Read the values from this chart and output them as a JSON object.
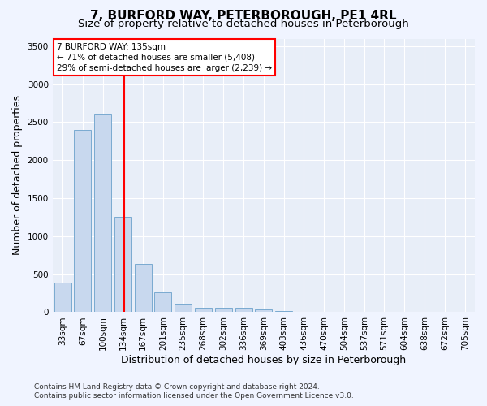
{
  "title": "7, BURFORD WAY, PETERBOROUGH, PE1 4RL",
  "subtitle": "Size of property relative to detached houses in Peterborough",
  "xlabel": "Distribution of detached houses by size in Peterborough",
  "ylabel": "Number of detached properties",
  "categories": [
    "33sqm",
    "67sqm",
    "100sqm",
    "134sqm",
    "167sqm",
    "201sqm",
    "235sqm",
    "268sqm",
    "302sqm",
    "336sqm",
    "369sqm",
    "403sqm",
    "436sqm",
    "470sqm",
    "504sqm",
    "537sqm",
    "571sqm",
    "604sqm",
    "638sqm",
    "672sqm",
    "705sqm"
  ],
  "values": [
    390,
    2400,
    2600,
    1250,
    640,
    260,
    100,
    62,
    55,
    55,
    40,
    18,
    5,
    3,
    2,
    2,
    1,
    1,
    1,
    1,
    1
  ],
  "bar_color": "#c8d8ee",
  "bar_edge_color": "#7aaad0",
  "ylim": [
    0,
    3600
  ],
  "yticks": [
    0,
    500,
    1000,
    1500,
    2000,
    2500,
    3000,
    3500
  ],
  "annotation_title": "7 BURFORD WAY: 135sqm",
  "annotation_line1": "← 71% of detached houses are smaller (5,408)",
  "annotation_line2": "29% of semi-detached houses are larger (2,239) →",
  "red_line_x": 3.05,
  "footnote1": "Contains HM Land Registry data © Crown copyright and database right 2024.",
  "footnote2": "Contains public sector information licensed under the Open Government Licence v3.0.",
  "background_color": "#f0f4ff",
  "plot_bg_color": "#e8eef8",
  "grid_color": "#ffffff",
  "title_fontsize": 11,
  "subtitle_fontsize": 9.5,
  "axis_label_fontsize": 9,
  "tick_fontsize": 7.5,
  "annotation_fontsize": 7.5,
  "footnote_fontsize": 6.5
}
